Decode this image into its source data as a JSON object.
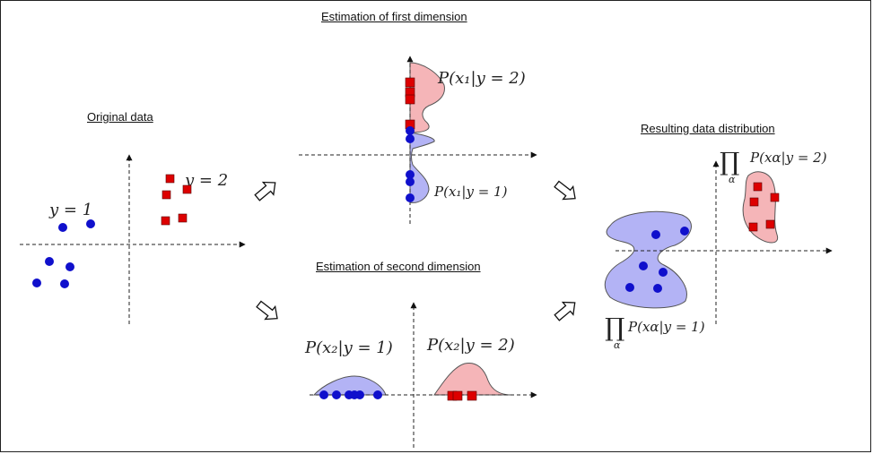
{
  "headings": {
    "original": "Original data",
    "first_dim": "Estimation of first dimension",
    "second_dim": "Estimation of second dimension",
    "result": "Resulting data distribution"
  },
  "labels": {
    "y1": "y = 1",
    "y2": "y = 2",
    "p_x1_y2": "P(x₁|y = 2)",
    "p_x1_y1": "P(x₁|y = 1)",
    "p_x2_y1": "P(x₂|y = 1)",
    "p_x2_y2": "P(x₂|y = 2)",
    "prod_symbol": "∏",
    "prod_index": "α",
    "p_xa_y2": "P(xα|y = 2)",
    "p_xa_y1": "P(xα|y = 1)"
  },
  "colors": {
    "class1_point": "#1010cc",
    "class2_point": "#dd0000",
    "class1_fill": "#b3b3f5",
    "class2_fill": "#f5b5b8"
  }
}
